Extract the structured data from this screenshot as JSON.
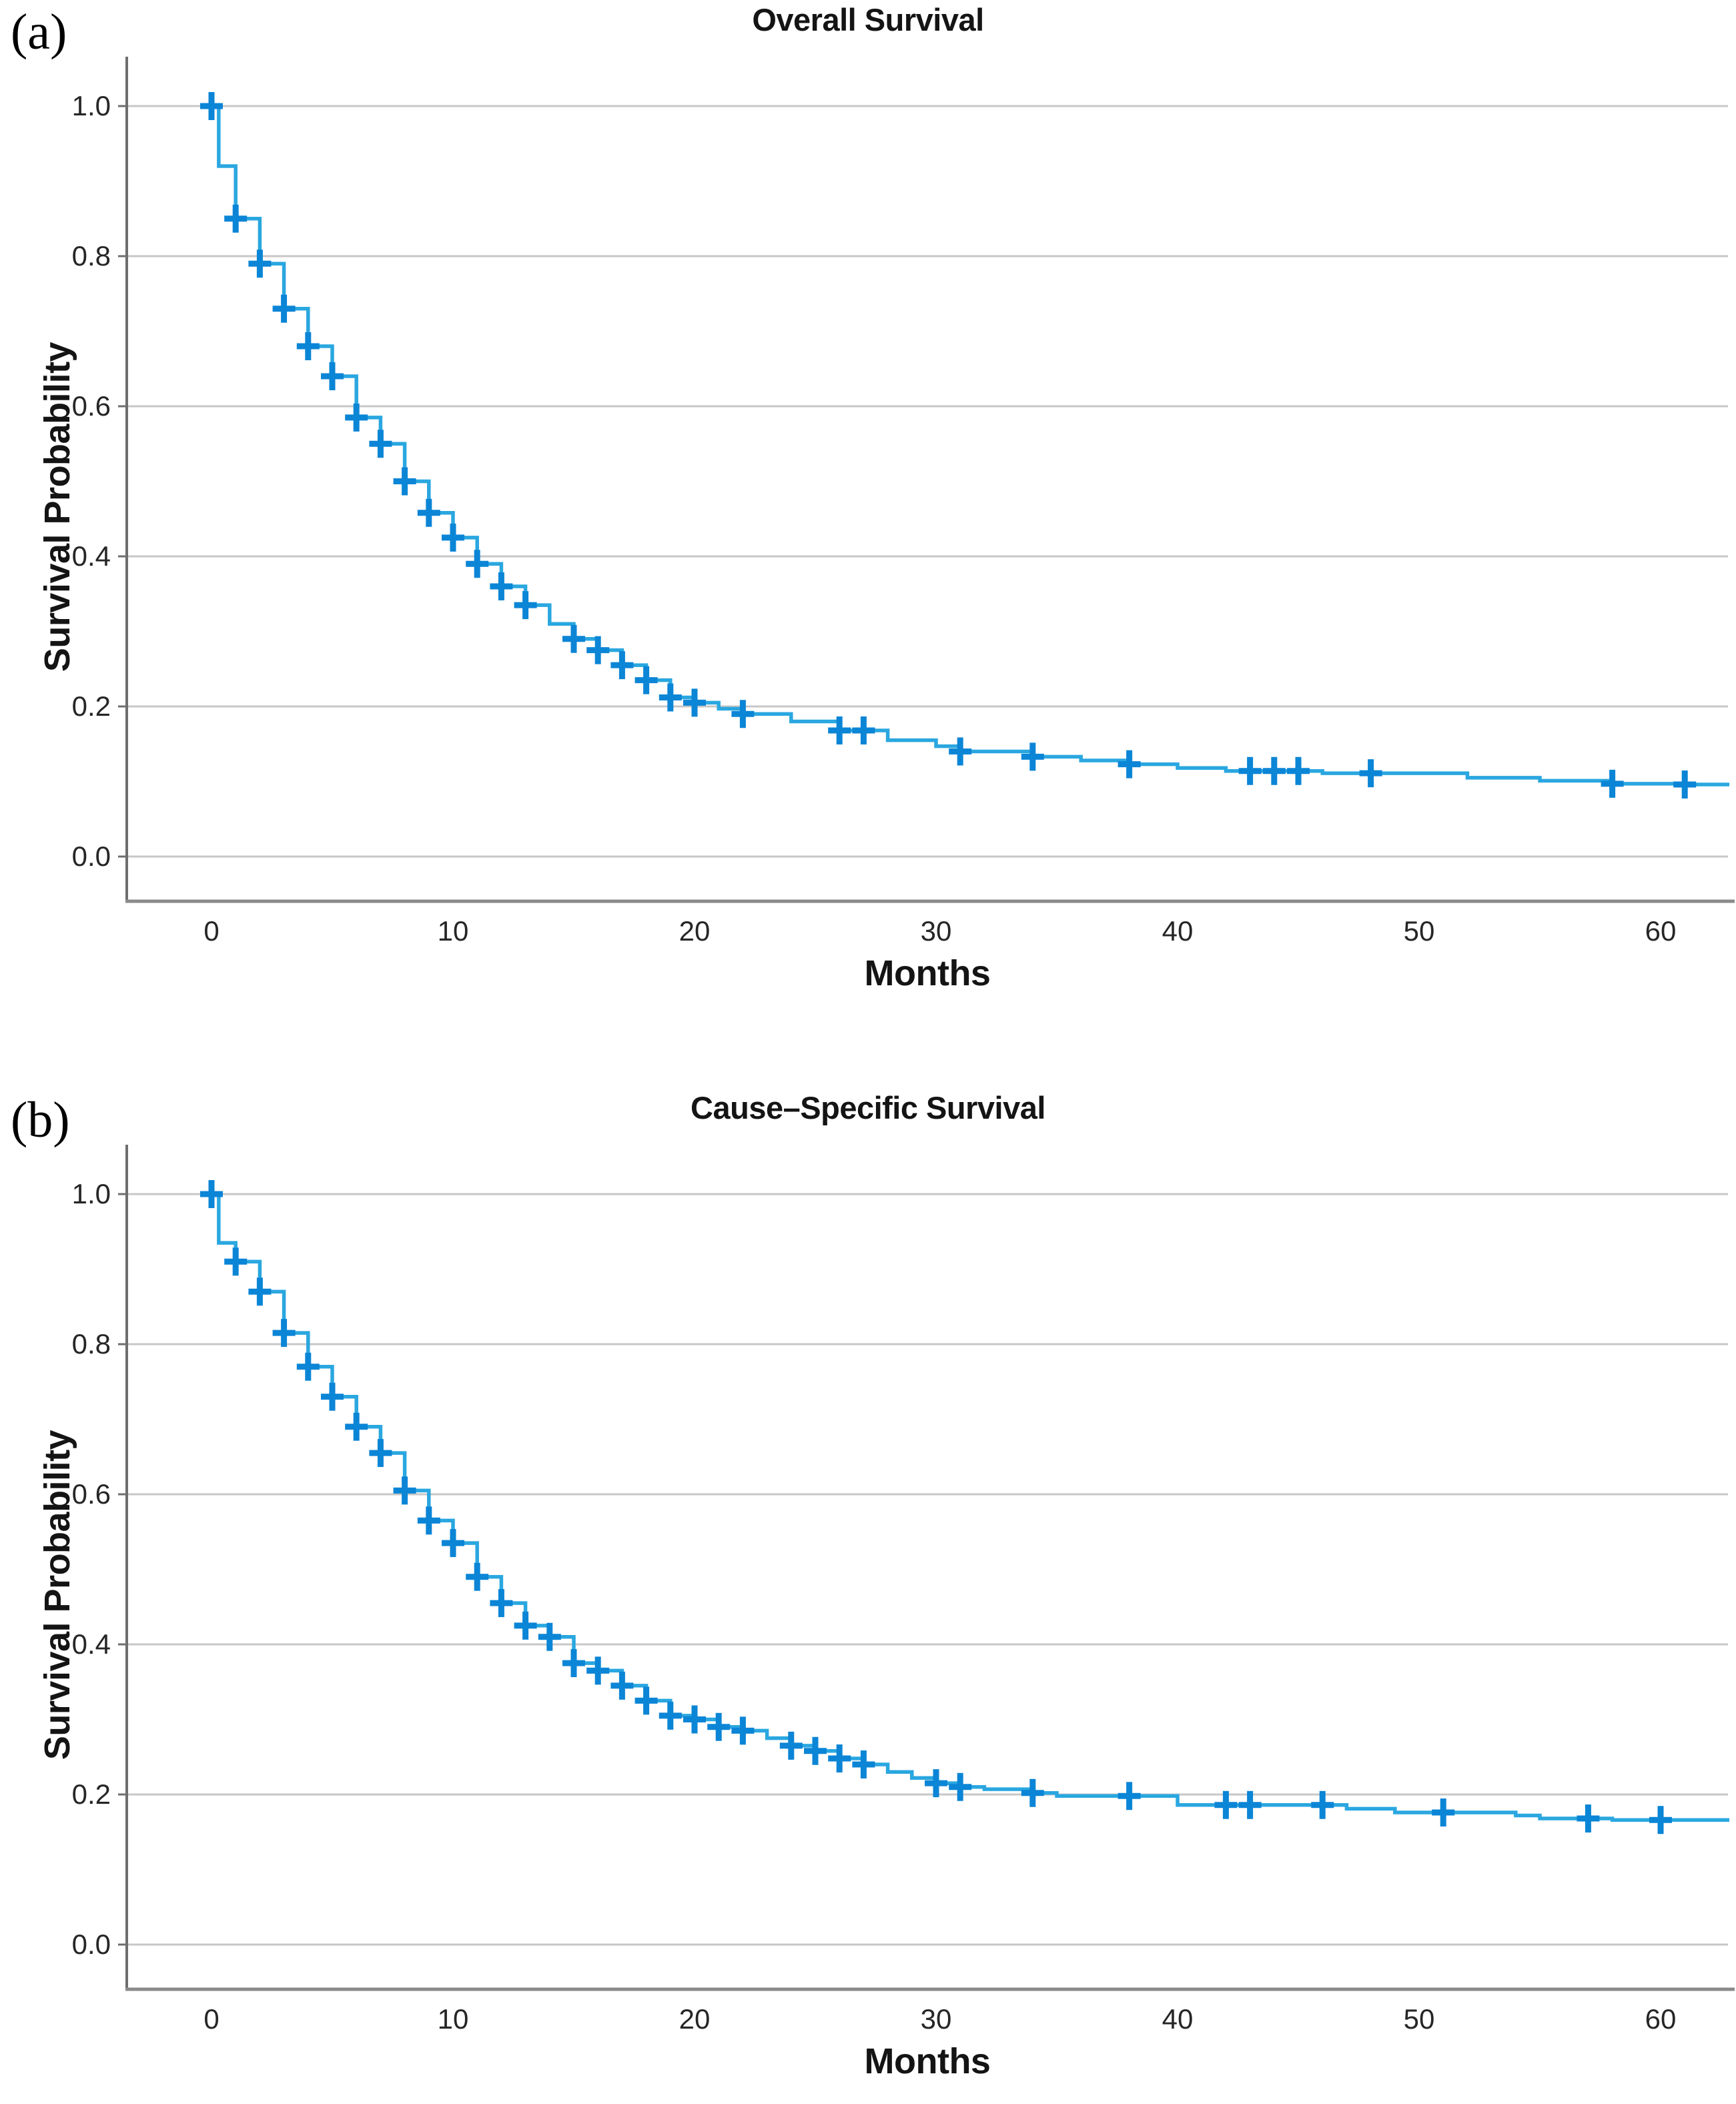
{
  "figure": {
    "background": "#ffffff",
    "description": "Two stacked Kaplan-Meier survival curve panels"
  },
  "chart_data": [
    {
      "type": "line",
      "subtype": "kaplan_meier_step",
      "panel_label": "(a)",
      "title": "Overall Survival",
      "xlabel": "Months",
      "ylabel": "Survival Probability",
      "x_ticks": [
        0,
        10,
        20,
        30,
        40,
        50,
        60
      ],
      "x_tick_labels": [
        "0",
        "10",
        "20",
        "30",
        "40",
        "50",
        "60"
      ],
      "y_ticks": [
        1.0,
        0.8,
        0.6,
        0.4,
        0.2,
        0.0
      ],
      "y_tick_labels": [
        "1.0",
        "0.8",
        "0.6",
        "0.4",
        "0.2",
        "0.0"
      ],
      "xlim": [
        -3.5,
        63.2
      ],
      "ylim": [
        0.0,
        1.0
      ],
      "grid": "horizontal-gridlines",
      "legend": "none",
      "colors": {
        "line": "#2AA7E0",
        "censor": "#0B85D6",
        "grid": "#C7C7C7",
        "axis": "#6E6E6E",
        "axis_bottom": "#8A8A8A",
        "text": "#262626",
        "title": "#141414"
      },
      "series": [
        {
          "name": "overall-survival",
          "steps": [
            [
              0,
              1.0
            ],
            [
              0.3,
              0.92
            ],
            [
              1,
              0.85
            ],
            [
              2,
              0.79
            ],
            [
              3,
              0.73
            ],
            [
              4,
              0.68
            ],
            [
              5,
              0.64
            ],
            [
              6,
              0.585
            ],
            [
              7,
              0.55
            ],
            [
              8,
              0.5
            ],
            [
              9,
              0.458
            ],
            [
              10,
              0.425
            ],
            [
              11,
              0.39
            ],
            [
              12,
              0.36
            ],
            [
              13,
              0.335
            ],
            [
              14,
              0.31
            ],
            [
              15,
              0.29
            ],
            [
              16,
              0.275
            ],
            [
              17,
              0.255
            ],
            [
              18,
              0.235
            ],
            [
              19,
              0.212
            ],
            [
              20,
              0.205
            ],
            [
              21,
              0.197
            ],
            [
              22,
              0.19
            ],
            [
              24,
              0.18
            ],
            [
              26,
              0.168
            ],
            [
              28,
              0.155
            ],
            [
              30,
              0.147
            ],
            [
              31,
              0.14
            ],
            [
              34,
              0.133
            ],
            [
              36,
              0.128
            ],
            [
              38,
              0.123
            ],
            [
              40,
              0.118
            ],
            [
              42,
              0.114
            ],
            [
              46,
              0.111
            ],
            [
              52,
              0.105
            ],
            [
              55,
              0.101
            ],
            [
              58,
              0.097
            ],
            [
              61,
              0.096
            ]
          ],
          "end_time": 63.2,
          "censor_times": [
            0,
            1,
            2,
            3,
            4,
            5,
            6,
            7,
            8,
            9,
            10,
            11,
            12,
            13,
            15,
            16,
            17,
            18,
            19,
            20,
            22,
            26,
            27,
            31,
            34,
            38,
            43,
            44,
            45,
            48,
            58,
            61
          ]
        }
      ]
    },
    {
      "type": "line",
      "subtype": "kaplan_meier_step",
      "panel_label": "(b)",
      "title": "Cause–Specific Survival",
      "xlabel": "Months",
      "ylabel": "Survival Probability",
      "x_ticks": [
        0,
        10,
        20,
        30,
        40,
        50,
        60
      ],
      "x_tick_labels": [
        "0",
        "10",
        "20",
        "30",
        "40",
        "50",
        "60"
      ],
      "y_ticks": [
        1.0,
        0.8,
        0.6,
        0.4,
        0.2,
        0.0
      ],
      "y_tick_labels": [
        "1.0",
        "0.8",
        "0.6",
        "0.4",
        "0.2",
        "0.0"
      ],
      "xlim": [
        -3.5,
        63.2
      ],
      "ylim": [
        0.0,
        1.0
      ],
      "grid": "horizontal-gridlines",
      "legend": "none",
      "colors": {
        "line": "#2AA7E0",
        "censor": "#0B85D6",
        "grid": "#C7C7C7",
        "axis": "#6E6E6E",
        "axis_bottom": "#8A8A8A",
        "text": "#262626",
        "title": "#141414"
      },
      "series": [
        {
          "name": "cause-specific-survival",
          "steps": [
            [
              0,
              1.0
            ],
            [
              0.3,
              0.935
            ],
            [
              1,
              0.91
            ],
            [
              2,
              0.87
            ],
            [
              3,
              0.815
            ],
            [
              4,
              0.77
            ],
            [
              5,
              0.73
            ],
            [
              6,
              0.69
            ],
            [
              7,
              0.655
            ],
            [
              8,
              0.605
            ],
            [
              9,
              0.565
            ],
            [
              10,
              0.535
            ],
            [
              11,
              0.49
            ],
            [
              12,
              0.455
            ],
            [
              13,
              0.425
            ],
            [
              14,
              0.41
            ],
            [
              15,
              0.375
            ],
            [
              16,
              0.365
            ],
            [
              17,
              0.345
            ],
            [
              18,
              0.325
            ],
            [
              19,
              0.305
            ],
            [
              20,
              0.3
            ],
            [
              21,
              0.29
            ],
            [
              22,
              0.285
            ],
            [
              23,
              0.275
            ],
            [
              24,
              0.265
            ],
            [
              25,
              0.258
            ],
            [
              26,
              0.248
            ],
            [
              27,
              0.24
            ],
            [
              28,
              0.23
            ],
            [
              29,
              0.222
            ],
            [
              30,
              0.215
            ],
            [
              31,
              0.21
            ],
            [
              32,
              0.207
            ],
            [
              34,
              0.202
            ],
            [
              35,
              0.198
            ],
            [
              40,
              0.186
            ],
            [
              47,
              0.181
            ],
            [
              49,
              0.176
            ],
            [
              54,
              0.172
            ],
            [
              55,
              0.168
            ],
            [
              58,
              0.166
            ]
          ],
          "end_time": 63.2,
          "censor_times": [
            0,
            1,
            2,
            3,
            4,
            5,
            6,
            7,
            8,
            9,
            10,
            11,
            12,
            13,
            14,
            15,
            16,
            17,
            18,
            19,
            20,
            21,
            22,
            24,
            25,
            26,
            27,
            30,
            31,
            34,
            38,
            42,
            43,
            46,
            51,
            57,
            60
          ]
        }
      ]
    }
  ]
}
